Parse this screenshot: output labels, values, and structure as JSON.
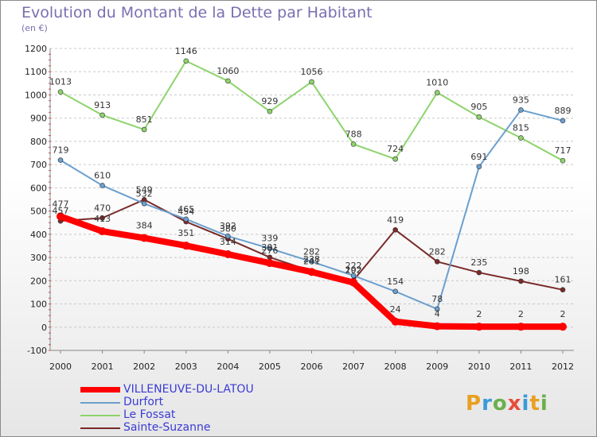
{
  "title": "Evolution du Montant de la Dette par Habitant",
  "subtitle": "(en €)",
  "logo": [
    "P",
    "r",
    "o",
    "x",
    "i",
    "t",
    "i"
  ],
  "chart_data": {
    "type": "line",
    "x": [
      "2000",
      "2001",
      "2002",
      "2003",
      "2004",
      "2005",
      "2006",
      "2007",
      "2008",
      "2009",
      "2010",
      "2011",
      "2012"
    ],
    "ylim": [
      -100,
      1200
    ],
    "yticks": [
      -100,
      0,
      100,
      200,
      300,
      400,
      500,
      600,
      700,
      800,
      900,
      1000,
      1100,
      1200
    ],
    "grid": "horizontal dashed",
    "legend_position": "bottom-left",
    "series": [
      {
        "name": "VILLENEUVE-DU-LATOU",
        "color": "#ff0000",
        "width": 8,
        "point": 5,
        "label_gap": 12,
        "values": [
          477,
          413,
          384,
          351,
          314,
          276,
          238,
          192,
          24,
          4,
          2,
          2,
          2
        ],
        "labels": [
          "477",
          "413",
          "384",
          "351",
          "314",
          "276",
          "238",
          "192",
          "24",
          "4",
          "2",
          "2",
          "2"
        ]
      },
      {
        "name": "Durfort",
        "color": "#6a9fce",
        "width": 2,
        "point": 3,
        "label_gap": 9,
        "values": [
          719,
          610,
          532,
          465,
          392,
          339,
          282,
          222,
          154,
          78,
          691,
          935,
          889
        ],
        "labels": [
          "719",
          "610",
          "532",
          "465",
          "392",
          "339",
          "282",
          "222",
          "154",
          "78",
          "691",
          "935",
          "889"
        ]
      },
      {
        "name": "Le Fossat",
        "color": "#8ed36c",
        "width": 2,
        "point": 3,
        "label_gap": 9,
        "values": [
          1013,
          913,
          851,
          1146,
          1060,
          929,
          1056,
          788,
          724,
          1010,
          905,
          815,
          717
        ],
        "labels": [
          "1013",
          "913",
          "851",
          "1146",
          "1060",
          "929",
          "1056",
          "788",
          "724",
          "1010",
          "905",
          "815",
          "717"
        ]
      },
      {
        "name": "Sainte-Suzanne",
        "color": "#7a2a2a",
        "width": 2,
        "point": 3,
        "label_gap": 9,
        "values": [
          457,
          470,
          549,
          454,
          380,
          301,
          241,
          202,
          419,
          282,
          235,
          198,
          161
        ],
        "labels": [
          "457",
          "470",
          "549",
          "454",
          "380",
          "301",
          "241",
          "202",
          "419",
          "282",
          "235",
          "198",
          "161"
        ]
      }
    ]
  }
}
